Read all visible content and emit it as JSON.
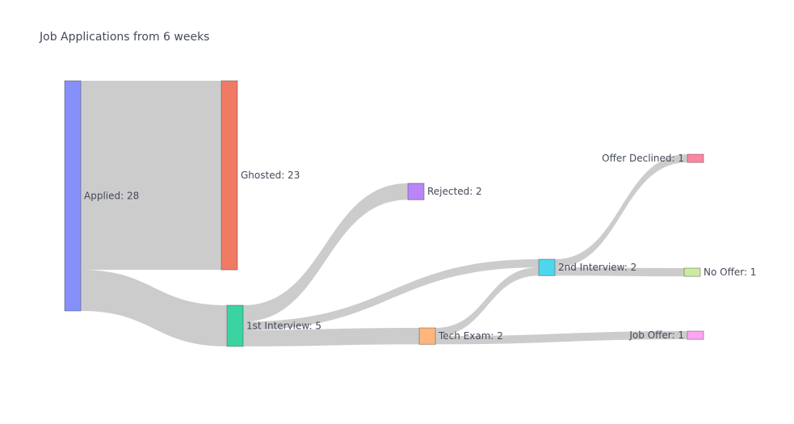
{
  "chart_data": {
    "type": "sankey",
    "title": "Job Applications from 6 weeks",
    "nodes": [
      {
        "id": "applied",
        "label": "Applied: 28",
        "value": 28,
        "color": "#8590fb"
      },
      {
        "id": "ghosted",
        "label": "Ghosted: 23",
        "value": 23,
        "color": "#f17a65"
      },
      {
        "id": "first_interview",
        "label": "1st Interview: 5",
        "value": 5,
        "color": "#3ad4a3"
      },
      {
        "id": "rejected",
        "label": "Rejected: 2",
        "value": 2,
        "color": "#bb84f8"
      },
      {
        "id": "tech_exam",
        "label": "Tech Exam: 2",
        "value": 2,
        "color": "#feb67e"
      },
      {
        "id": "second_interview",
        "label": "2nd Interview: 2",
        "value": 2,
        "color": "#4cd7ef"
      },
      {
        "id": "offer_declined",
        "label": "Offer Declined: 1",
        "value": 1,
        "color": "#fb85a3"
      },
      {
        "id": "no_offer",
        "label": "No Offer: 1",
        "value": 1,
        "color": "#cbec9e"
      },
      {
        "id": "job_offer",
        "label": "Job Offer: 1",
        "value": 1,
        "color": "#fea5f2"
      }
    ],
    "links": [
      {
        "source": "applied",
        "target": "ghosted",
        "value": 23
      },
      {
        "source": "applied",
        "target": "first_interview",
        "value": 5
      },
      {
        "source": "first_interview",
        "target": "rejected",
        "value": 2
      },
      {
        "source": "first_interview",
        "target": "second_interview",
        "value": 1
      },
      {
        "source": "first_interview",
        "target": "tech_exam",
        "value": 2
      },
      {
        "source": "tech_exam",
        "target": "second_interview",
        "value": 1
      },
      {
        "source": "tech_exam",
        "target": "job_offer",
        "value": 1
      },
      {
        "source": "second_interview",
        "target": "offer_declined",
        "value": 1
      },
      {
        "source": "second_interview",
        "target": "no_offer",
        "value": 1
      }
    ]
  }
}
